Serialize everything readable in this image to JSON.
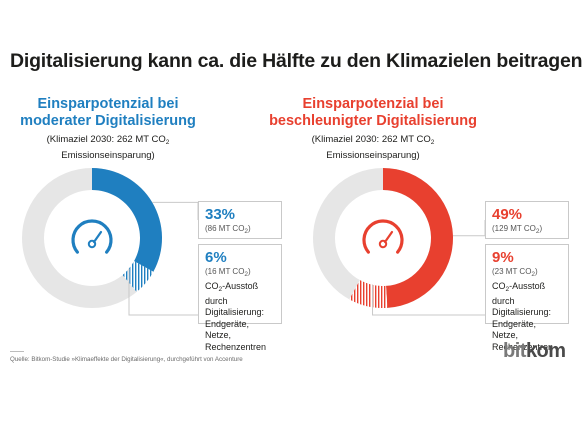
{
  "title": "Digitalisierung kann ca. die Hälfte zu den Klimazielen beitragen",
  "colors": {
    "blue": "#1f7fc0",
    "red": "#e8402f",
    "grey_ring": "#e6e6e6",
    "hatch_blue": "#1f7fc0",
    "hatch_red": "#e8402f"
  },
  "panels": [
    {
      "heading_line1": "Einsparpotenzial bei",
      "heading_line2": "moderater Digitalisierung",
      "sub_line1": "(Klimaziel 2030: 262 MT CO",
      "sub_sub": "2",
      "sub_line2": "Emissionseinsparung)",
      "main_pct": "33%",
      "main_mt": "(86 MT CO",
      "main_mt_sub": "2",
      "main_mt_end": ")",
      "sec_pct": "6%",
      "sec_mt": "(16 MT CO",
      "sec_mt_sub": "2",
      "sec_mt_end": ")",
      "sec_desc_a": "CO",
      "sec_desc_sub": "2",
      "sec_desc_b": "-Ausstoß durch",
      "sec_desc_c": "Digitalisierung:",
      "sec_desc_d": "Endgeräte, Netze,",
      "sec_desc_e": "Rechenzentren"
    },
    {
      "heading_line1": "Einsparpotenzial bei",
      "heading_line2": "beschleunigter Digitalisierung",
      "sub_line1": "(Klimaziel 2030: 262 MT CO",
      "sub_sub": "2",
      "sub_line2": "Emissionseinsparung)",
      "main_pct": "49%",
      "main_mt": "(129 MT CO",
      "main_mt_sub": "2",
      "main_mt_end": ")",
      "sec_pct": "9%",
      "sec_mt": "(23 MT CO",
      "sec_mt_sub": "2",
      "sec_mt_end": ")",
      "sec_desc_a": "CO",
      "sec_desc_sub": "2",
      "sec_desc_b": "-Ausstoß durch",
      "sec_desc_c": "Digitalisierung:",
      "sec_desc_d": "Endgeräte, Netze,",
      "sec_desc_e": "Rechenzentren"
    }
  ],
  "chart_data": [
    {
      "type": "pie",
      "variant": "donut",
      "total": 262,
      "unit": "MT CO2",
      "slices": [
        {
          "label": "33%",
          "value": 33,
          "mt": 86,
          "color": "#1f7fc0",
          "style": "solid"
        },
        {
          "label": "6%",
          "value": 6,
          "mt": 16,
          "color": "#1f7fc0",
          "style": "hatched"
        }
      ],
      "remainder_color": "#e6e6e6",
      "center_icon": "gauge-icon"
    },
    {
      "type": "pie",
      "variant": "donut",
      "total": 262,
      "unit": "MT CO2",
      "slices": [
        {
          "label": "49%",
          "value": 49,
          "mt": 129,
          "color": "#e8402f",
          "style": "solid"
        },
        {
          "label": "9%",
          "value": 9,
          "mt": 23,
          "color": "#e8402f",
          "style": "hatched"
        }
      ],
      "remainder_color": "#e6e6e6",
      "center_icon": "gauge-icon"
    }
  ],
  "source": "Quelle: Bitkom-Studie »Klimaeffekte der Digitalisierung«, durchgeführt von Accenture",
  "logo": {
    "part1": "bit",
    "part2": "kom"
  }
}
